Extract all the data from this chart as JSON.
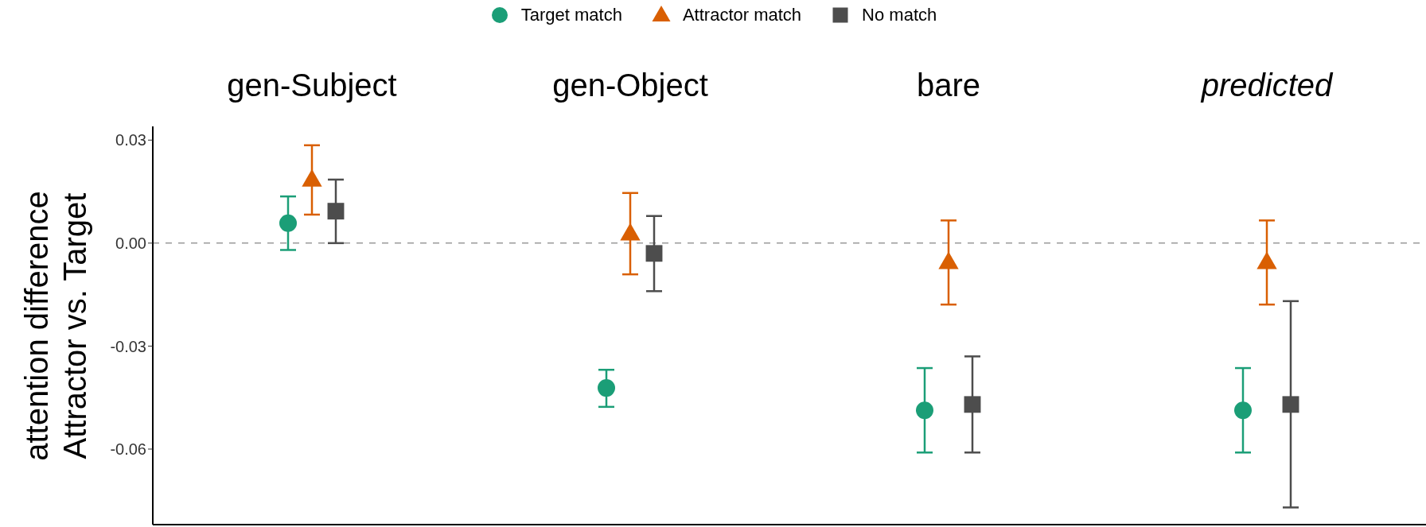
{
  "chart_data": {
    "type": "scatter",
    "ylabel": "attention difference\nAttractor vs. Target",
    "categories": [
      "gen-Subject",
      "gen-Object",
      "bare",
      "predicted"
    ],
    "ylim": [
      -0.082,
      0.034
    ],
    "yticks": [
      0.03,
      {
        "value": 0,
        "label": "0.00"
      },
      -0.03,
      -0.06
    ],
    "legend": "top",
    "grid": false,
    "ref_lines": [
      {
        "axis": "y",
        "value": 0,
        "color": "#999999",
        "line_style": "dashed"
      }
    ],
    "series": [
      {
        "name": "Target match",
        "color": "#1b9e77",
        "marker": "circle",
        "values": [
          0.0058,
          -0.0422,
          -0.0487,
          -0.0487
        ],
        "errors": [
          [
            -0.002,
            0.0136
          ],
          [
            -0.0477,
            -0.0369
          ],
          [
            -0.061,
            -0.0364
          ],
          [
            -0.061,
            -0.0364
          ]
        ]
      },
      {
        "name": "Attractor match",
        "color": "#d95f02",
        "marker": "triangle",
        "values": [
          0.0185,
          0.0028,
          -0.0055,
          -0.0055
        ],
        "errors": [
          [
            0.0083,
            0.0285
          ],
          [
            -0.0091,
            0.0146
          ],
          [
            -0.0179,
            0.0066
          ],
          [
            -0.0179,
            0.0066
          ]
        ]
      },
      {
        "name": "No match",
        "color": "#4d4d4d",
        "marker": "square",
        "values": [
          0.0093,
          -0.003,
          -0.047,
          -0.047
        ],
        "errors": [
          [
            0.0,
            0.0185
          ],
          [
            -0.014,
            0.0079
          ],
          [
            -0.061,
            -0.033
          ],
          [
            -0.077,
            -0.0169
          ]
        ]
      }
    ]
  }
}
